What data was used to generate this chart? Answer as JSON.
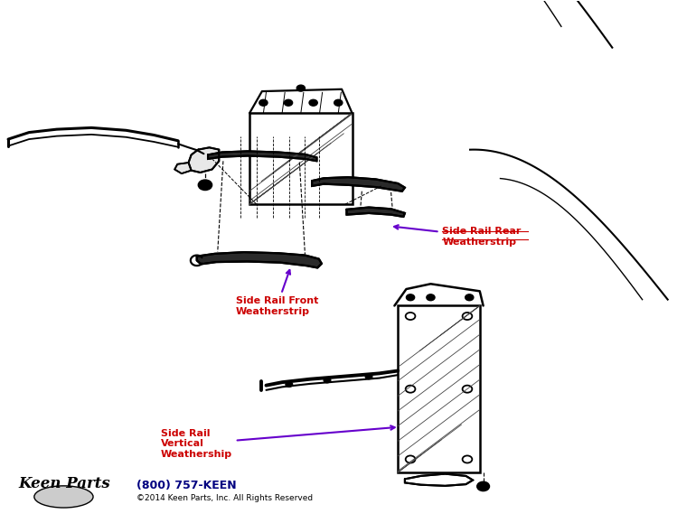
{
  "bg_color": "#ffffff",
  "fig_width": 7.7,
  "fig_height": 5.79,
  "dpi": 100,
  "label1_text": "Side Rail Rear\nWeatherstrip",
  "label2_text": "Side Rail Front\nWeatherstrip",
  "label3_text": "Side Rail\nVertical\nWeathership",
  "label_color": "#cc0000",
  "arrow_color": "#6600cc",
  "phone_text": "(800) 757-KEEN",
  "copyright_text": "©2014 Keen Parts, Inc. All Rights Reserved"
}
